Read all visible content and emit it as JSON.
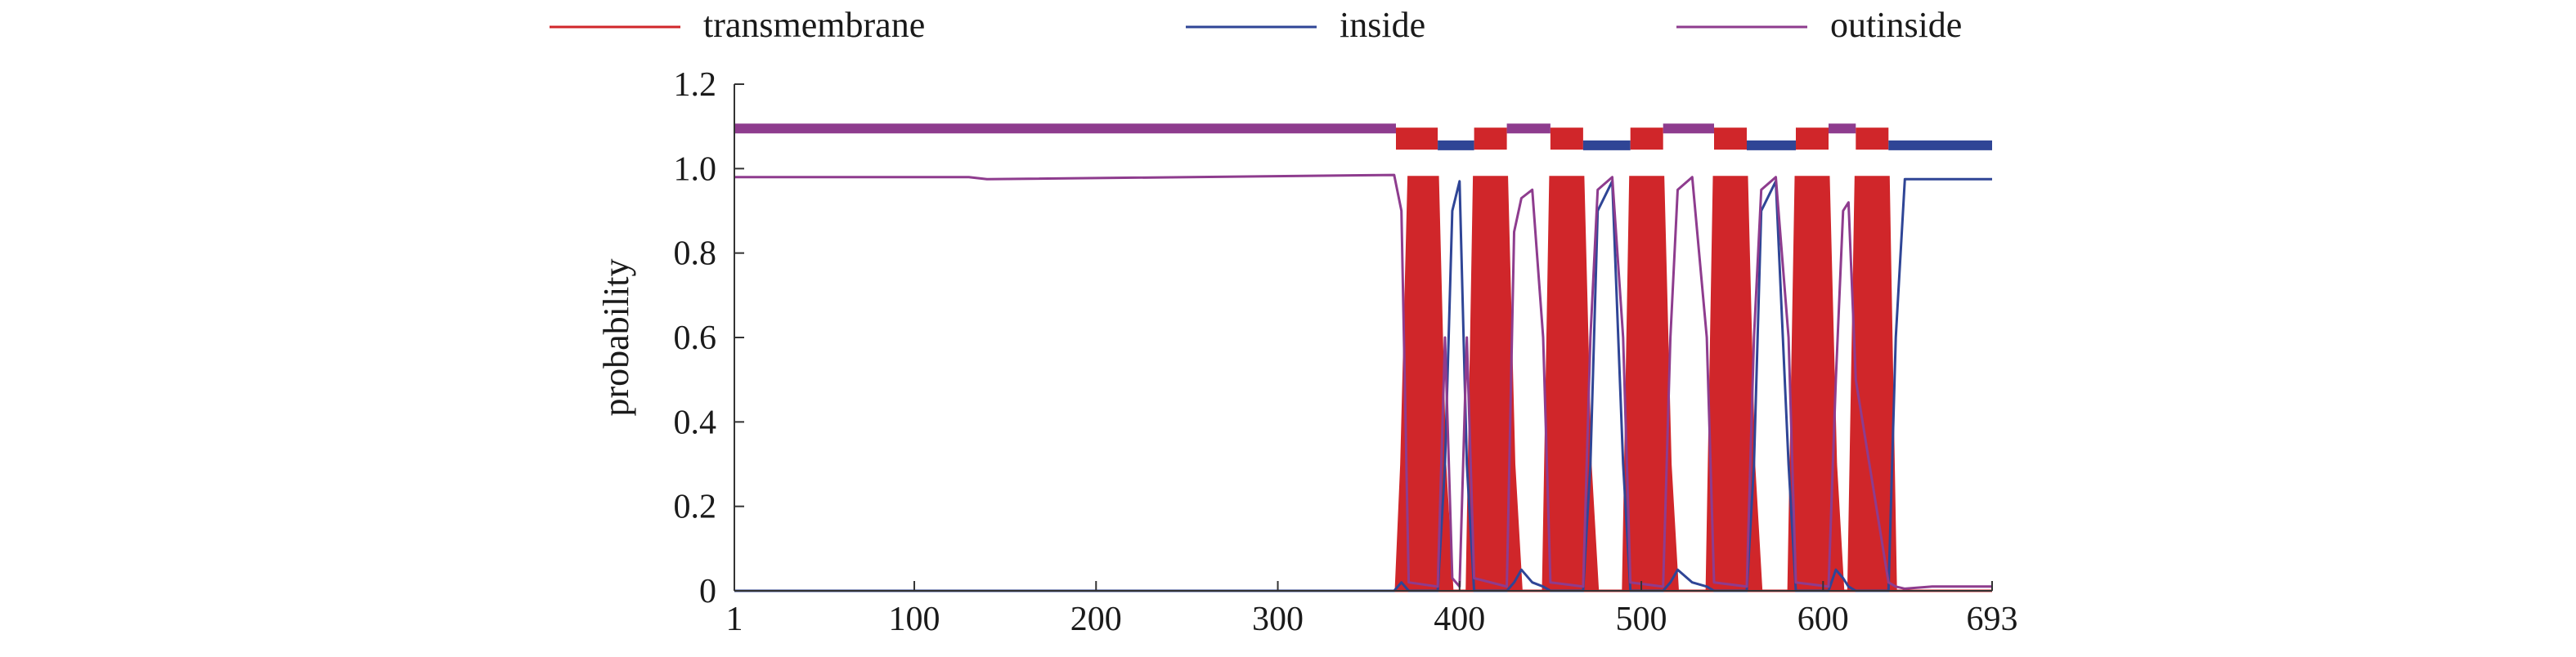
{
  "chart_data": {
    "type": "line",
    "title": "",
    "xlabel": "",
    "ylabel": "probability",
    "xlim": [
      1,
      693
    ],
    "ylim": [
      0,
      1.2
    ],
    "x_ticks": [
      1,
      100,
      200,
      300,
      400,
      500,
      600,
      693
    ],
    "y_ticks": [
      0,
      0.2,
      0.4,
      0.6,
      0.8,
      1.0,
      1.2
    ],
    "y_tick_labels": [
      "0",
      "0.2",
      "0.4",
      "0.6",
      "0.8",
      "1.0",
      "1.2"
    ],
    "grid": false,
    "legend_position": "top",
    "series": [
      {
        "name": "transmembrane",
        "color": "#d0262a",
        "style": "filled",
        "x": [
          1,
          365,
          368,
          372,
          388,
          392,
          396,
          404,
          408,
          426,
          430,
          434,
          446,
          450,
          468,
          472,
          476,
          490,
          494,
          512,
          516,
          520,
          536,
          540,
          558,
          562,
          566,
          581,
          585,
          603,
          607,
          611,
          614,
          618,
          636,
          640,
          693
        ],
        "y": [
          0,
          0,
          0.3,
          0.98,
          0.98,
          0.3,
          0,
          0,
          0.98,
          0.98,
          0.3,
          0,
          0,
          0.98,
          0.98,
          0.3,
          0,
          0,
          0.98,
          0.98,
          0.3,
          0,
          0,
          0.98,
          0.98,
          0.3,
          0,
          0,
          0.98,
          0.98,
          0.3,
          0,
          0,
          0.98,
          0.98,
          0,
          0
        ]
      },
      {
        "name": "inside",
        "color": "#2f4596",
        "x": [
          1,
          364,
          368,
          372,
          388,
          392,
          396,
          400,
          404,
          408,
          426,
          430,
          434,
          440,
          446,
          450,
          468,
          472,
          476,
          484,
          490,
          494,
          512,
          516,
          520,
          528,
          536,
          540,
          558,
          562,
          566,
          574,
          581,
          585,
          603,
          607,
          611,
          614,
          618,
          636,
          640,
          645,
          693
        ],
        "y": [
          0,
          0,
          0.02,
          0,
          0,
          0.3,
          0.9,
          0.97,
          0.3,
          0,
          0,
          0.02,
          0.05,
          0.02,
          0.01,
          0,
          0,
          0.3,
          0.9,
          0.97,
          0.3,
          0,
          0,
          0.02,
          0.05,
          0.02,
          0.01,
          0,
          0,
          0.3,
          0.9,
          0.97,
          0.3,
          0,
          0,
          0.05,
          0.03,
          0.01,
          0,
          0,
          0.6,
          0.975,
          0.975
        ]
      },
      {
        "name": "outinside",
        "color": "#8e3c8e",
        "x": [
          1,
          130,
          140,
          364,
          368,
          372,
          388,
          392,
          396,
          400,
          404,
          408,
          426,
          430,
          434,
          440,
          446,
          450,
          468,
          472,
          476,
          484,
          490,
          494,
          512,
          516,
          520,
          528,
          536,
          540,
          558,
          562,
          566,
          574,
          581,
          585,
          603,
          607,
          611,
          614,
          618,
          636,
          640,
          645,
          660,
          693
        ],
        "y": [
          0.98,
          0.98,
          0.975,
          0.985,
          0.9,
          0.02,
          0.01,
          0.6,
          0.03,
          0.01,
          0.6,
          0.03,
          0.01,
          0.85,
          0.93,
          0.95,
          0.6,
          0.02,
          0.01,
          0.6,
          0.95,
          0.98,
          0.6,
          0.02,
          0.01,
          0.6,
          0.95,
          0.98,
          0.6,
          0.02,
          0.01,
          0.6,
          0.95,
          0.98,
          0.6,
          0.02,
          0.01,
          0.5,
          0.9,
          0.92,
          0.5,
          0.02,
          0.01,
          0.005,
          0.01,
          0.01
        ]
      }
    ],
    "topology_bar": {
      "segments": [
        {
          "kind": "outside",
          "x": [
            1,
            365
          ],
          "color": "#8e3c8e",
          "y": 1.095
        },
        {
          "kind": "transmembrane",
          "x": [
            365,
            388
          ],
          "color": "#d0262a",
          "y": 1.085
        },
        {
          "kind": "inside",
          "x": [
            388,
            408
          ],
          "color": "#2f4596",
          "y": 1.055
        },
        {
          "kind": "transmembrane",
          "x": [
            408,
            426
          ],
          "color": "#d0262a",
          "y": 1.085
        },
        {
          "kind": "outside",
          "x": [
            426,
            450
          ],
          "color": "#8e3c8e",
          "y": 1.095
        },
        {
          "kind": "transmembrane",
          "x": [
            450,
            468
          ],
          "color": "#d0262a",
          "y": 1.085
        },
        {
          "kind": "inside",
          "x": [
            468,
            494
          ],
          "color": "#2f4596",
          "y": 1.055
        },
        {
          "kind": "transmembrane",
          "x": [
            494,
            512
          ],
          "color": "#d0262a",
          "y": 1.085
        },
        {
          "kind": "outside",
          "x": [
            512,
            540
          ],
          "color": "#8e3c8e",
          "y": 1.095
        },
        {
          "kind": "transmembrane",
          "x": [
            540,
            558
          ],
          "color": "#d0262a",
          "y": 1.085
        },
        {
          "kind": "inside",
          "x": [
            558,
            585
          ],
          "color": "#2f4596",
          "y": 1.055
        },
        {
          "kind": "transmembrane",
          "x": [
            585,
            603
          ],
          "color": "#d0262a",
          "y": 1.085
        },
        {
          "kind": "outside",
          "x": [
            603,
            618
          ],
          "color": "#8e3c8e",
          "y": 1.095
        },
        {
          "kind": "transmembrane",
          "x": [
            618,
            636
          ],
          "color": "#d0262a",
          "y": 1.085
        },
        {
          "kind": "inside",
          "x": [
            636,
            693
          ],
          "color": "#2f4596",
          "y": 1.055
        }
      ]
    }
  }
}
